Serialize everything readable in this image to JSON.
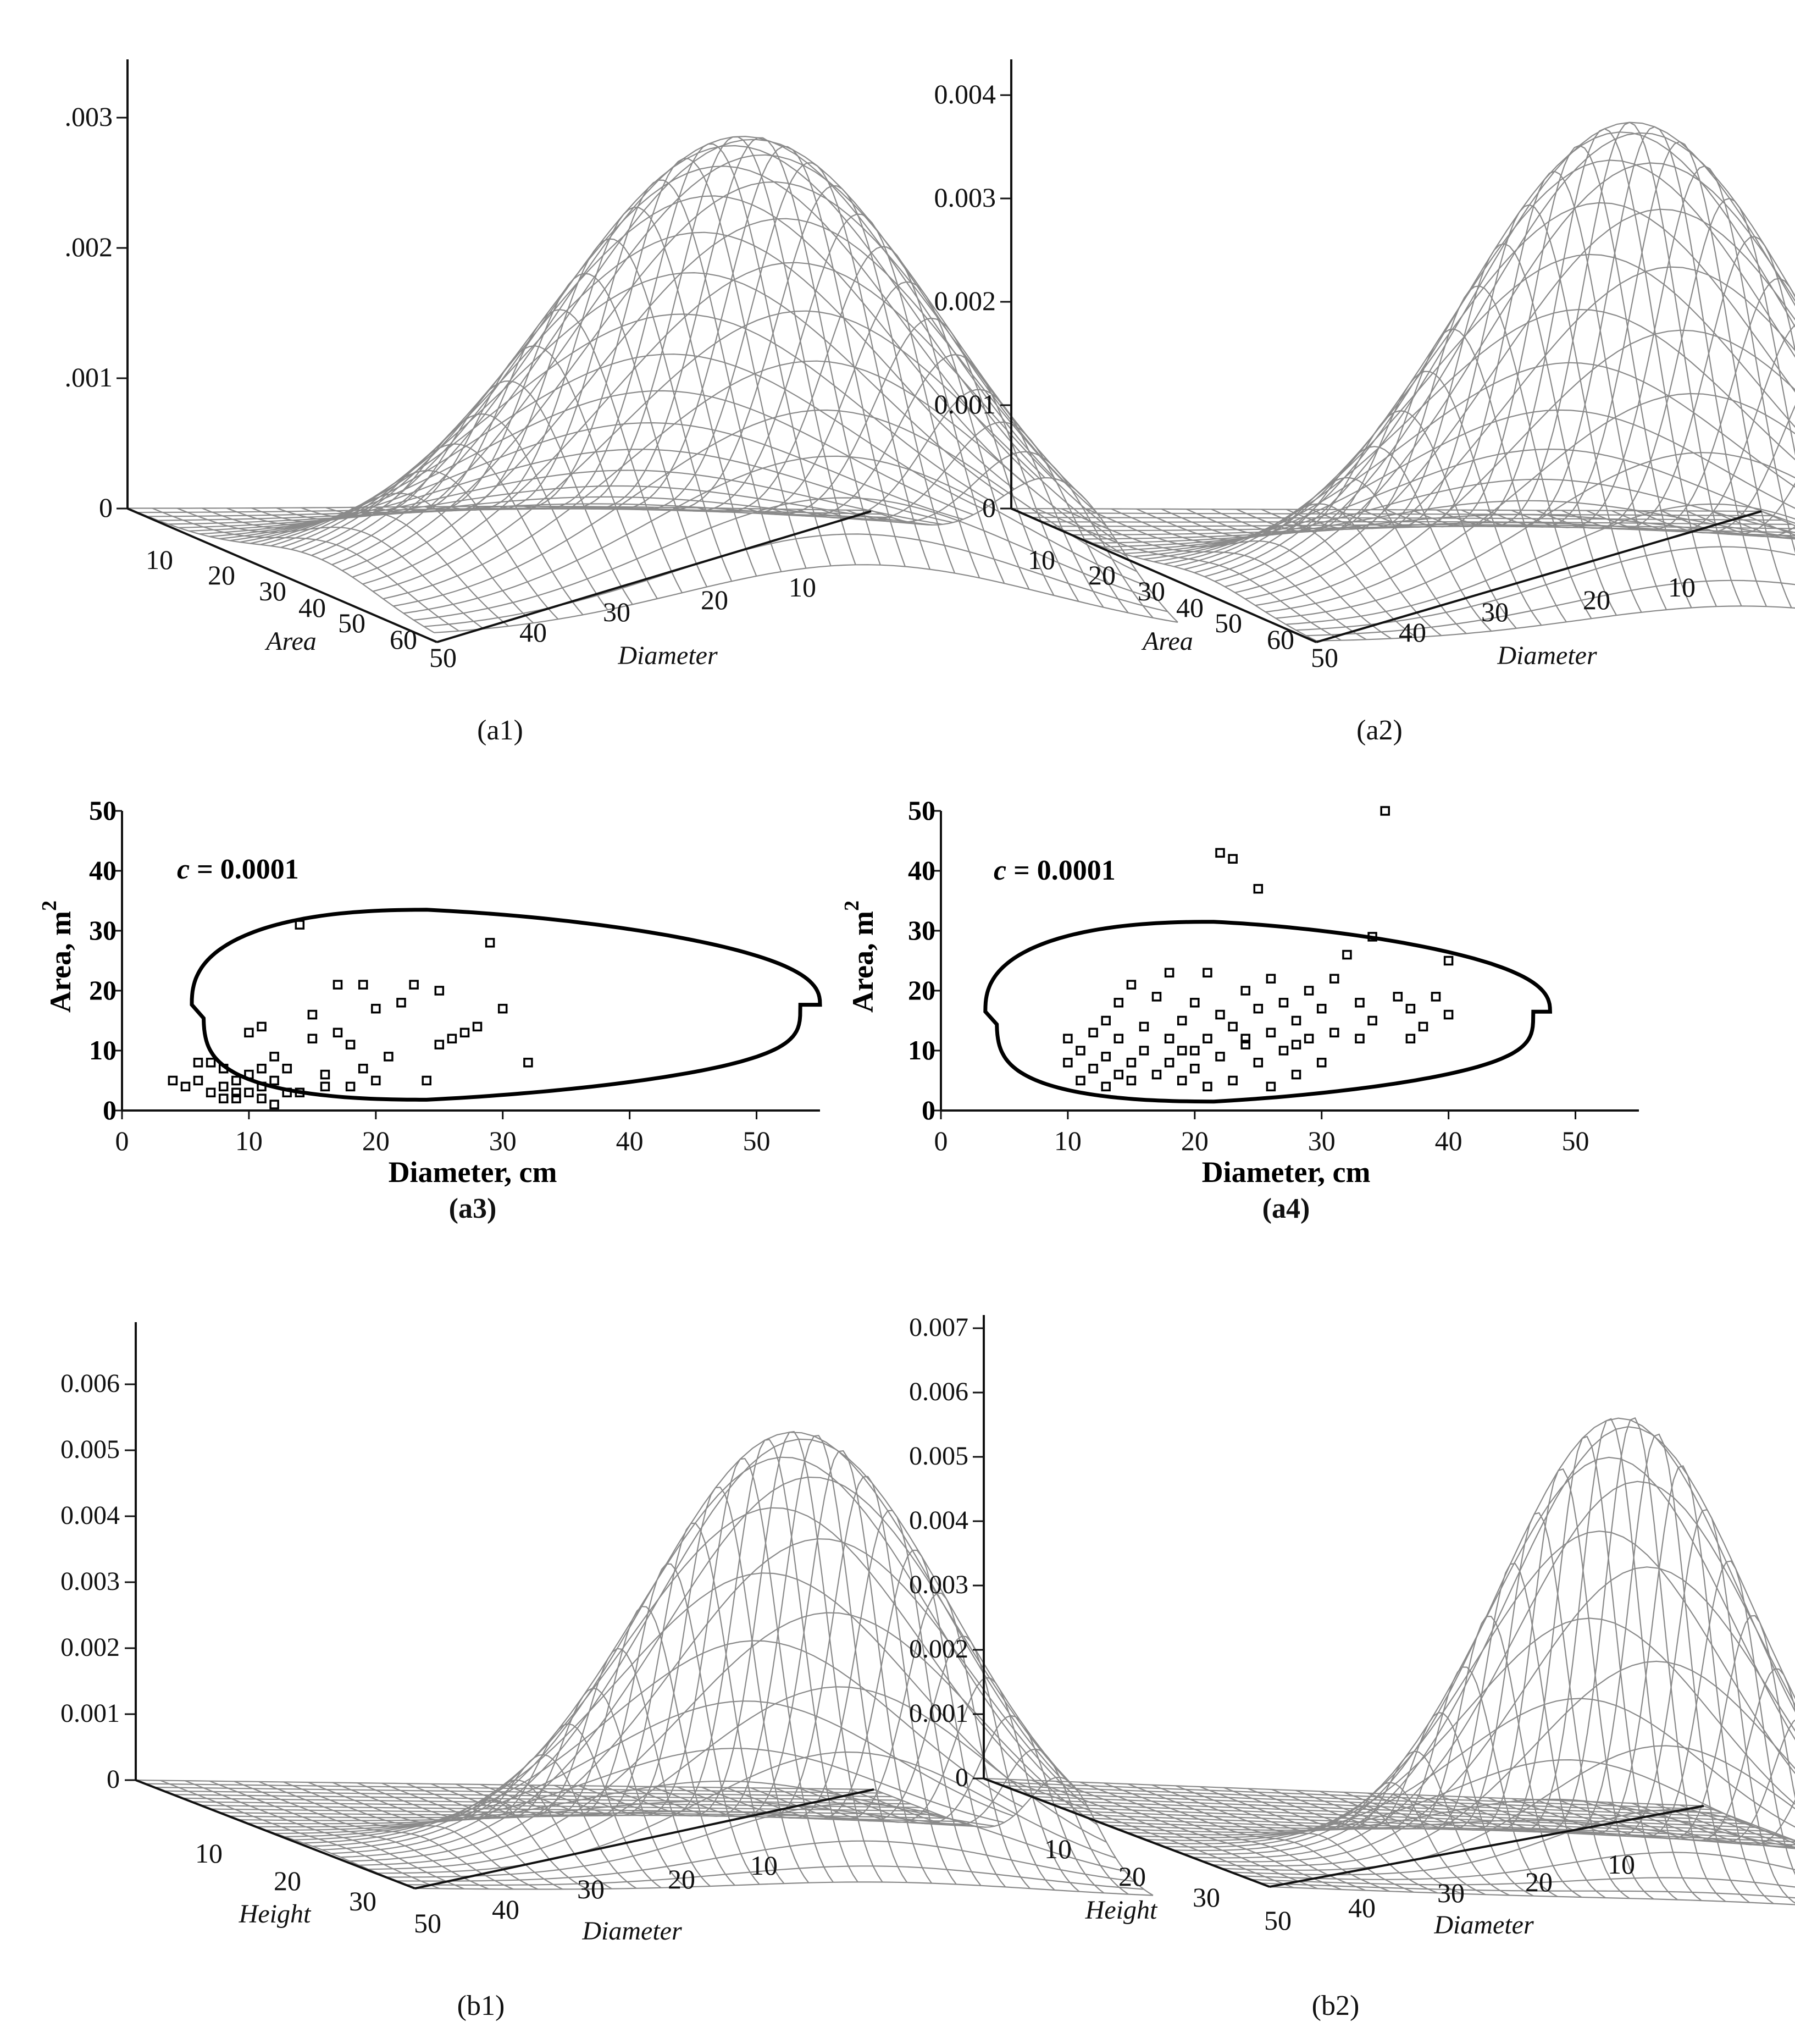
{
  "chart_data": [
    {
      "id": "a1",
      "type": "surface",
      "caption": "(a1)",
      "z_ticks": [
        "0",
        ".001",
        ".002",
        ".003"
      ],
      "area_ticks": [
        "10",
        "20",
        "30",
        "40",
        "50",
        "60"
      ],
      "area_label": "Area",
      "diameter_ticks": [
        "50",
        "40",
        "30",
        "20",
        "10"
      ],
      "diameter_label": "Diameter",
      "zmax": 0.0036
    },
    {
      "id": "a2",
      "type": "surface",
      "caption": "(a2)",
      "z_ticks": [
        "0",
        "0.001",
        "0.002",
        "0.003",
        "0.004"
      ],
      "area_ticks": [
        "10",
        "20",
        "30",
        "40",
        "50",
        "60"
      ],
      "area_label": "Area",
      "diameter_ticks": [
        "50",
        "40",
        "30",
        "20",
        "10"
      ],
      "diameter_label": "Diameter",
      "zmax": 0.0044
    },
    {
      "id": "a3",
      "type": "scatter",
      "caption": "(a3)",
      "xlabel": "Diameter, cm",
      "ylabel": "Area, m",
      "ylabel_sup": "2",
      "annotation_var": "c",
      "annotation_rest": " = 0.0001",
      "xlim": [
        0,
        55
      ],
      "ylim": [
        0,
        50
      ],
      "xticks": [
        "0",
        "10",
        "20",
        "30",
        "40",
        "50"
      ],
      "yticks": [
        "0",
        "10",
        "20",
        "30",
        "40",
        "50"
      ],
      "contour": {
        "dmin": 5.5,
        "dmax": 55,
        "apeak": 33.5,
        "dpeak": 24,
        "abottom": 1.8
      },
      "points": [
        [
          4,
          5
        ],
        [
          5,
          4
        ],
        [
          6,
          8
        ],
        [
          6,
          5
        ],
        [
          7,
          3
        ],
        [
          8,
          7
        ],
        [
          8,
          4
        ],
        [
          9,
          5
        ],
        [
          9,
          3
        ],
        [
          9,
          2
        ],
        [
          10,
          6
        ],
        [
          10,
          3
        ],
        [
          10,
          13
        ],
        [
          11,
          7
        ],
        [
          11,
          4
        ],
        [
          11,
          14
        ],
        [
          12,
          9
        ],
        [
          12,
          5
        ],
        [
          12,
          1
        ],
        [
          13,
          3
        ],
        [
          13,
          7
        ],
        [
          14,
          31
        ],
        [
          15,
          16
        ],
        [
          15,
          12
        ],
        [
          16,
          6
        ],
        [
          16,
          4
        ],
        [
          17,
          21
        ],
        [
          17,
          13
        ],
        [
          18,
          4
        ],
        [
          18,
          11
        ],
        [
          19,
          21
        ],
        [
          19,
          7
        ],
        [
          20,
          17
        ],
        [
          20,
          5
        ],
        [
          21,
          9
        ],
        [
          22,
          18
        ],
        [
          23,
          21
        ],
        [
          24,
          5
        ],
        [
          25,
          20
        ],
        [
          25,
          11
        ],
        [
          26,
          12
        ],
        [
          27,
          13
        ],
        [
          28,
          14
        ],
        [
          29,
          28
        ],
        [
          30,
          17
        ],
        [
          32,
          8
        ],
        [
          8,
          2
        ],
        [
          11,
          2
        ],
        [
          14,
          3
        ],
        [
          7,
          8
        ]
      ]
    },
    {
      "id": "a4",
      "type": "scatter",
      "caption": "(a4)",
      "xlabel": "Diameter, cm",
      "ylabel": "Area, m",
      "ylabel_sup": "2",
      "annotation_var": "c",
      "annotation_rest": " = 0.0001",
      "xlim": [
        0,
        55
      ],
      "ylim": [
        0,
        50
      ],
      "xticks": [
        "0",
        "10",
        "20",
        "30",
        "40",
        "50"
      ],
      "yticks": [
        "0",
        "10",
        "20",
        "30",
        "40",
        "50"
      ],
      "contour": {
        "dmin": 3.5,
        "dmax": 48,
        "apeak": 31.5,
        "dpeak": 21.5,
        "abottom": 1.5
      },
      "points": [
        [
          10,
          8
        ],
        [
          10,
          12
        ],
        [
          11,
          5
        ],
        [
          11,
          10
        ],
        [
          12,
          7
        ],
        [
          12,
          13
        ],
        [
          13,
          4
        ],
        [
          13,
          9
        ],
        [
          13,
          15
        ],
        [
          14,
          6
        ],
        [
          14,
          12
        ],
        [
          14,
          18
        ],
        [
          15,
          8
        ],
        [
          15,
          5
        ],
        [
          15,
          21
        ],
        [
          16,
          10
        ],
        [
          16,
          14
        ],
        [
          17,
          6
        ],
        [
          17,
          19
        ],
        [
          18,
          12
        ],
        [
          18,
          8
        ],
        [
          18,
          23
        ],
        [
          19,
          5
        ],
        [
          19,
          15
        ],
        [
          20,
          10
        ],
        [
          20,
          18
        ],
        [
          20,
          7
        ],
        [
          21,
          12
        ],
        [
          21,
          23
        ],
        [
          22,
          9
        ],
        [
          22,
          16
        ],
        [
          22,
          43
        ],
        [
          23,
          14
        ],
        [
          23,
          5
        ],
        [
          23,
          42
        ],
        [
          24,
          11
        ],
        [
          24,
          20
        ],
        [
          25,
          8
        ],
        [
          25,
          17
        ],
        [
          25,
          37
        ],
        [
          26,
          13
        ],
        [
          26,
          22
        ],
        [
          27,
          10
        ],
        [
          27,
          18
        ],
        [
          28,
          6
        ],
        [
          28,
          15
        ],
        [
          29,
          12
        ],
        [
          29,
          20
        ],
        [
          30,
          8
        ],
        [
          30,
          17
        ],
        [
          31,
          13
        ],
        [
          31,
          22
        ],
        [
          32,
          26
        ],
        [
          33,
          12
        ],
        [
          33,
          18
        ],
        [
          34,
          15
        ],
        [
          34,
          29
        ],
        [
          35,
          50
        ],
        [
          36,
          19
        ],
        [
          37,
          12
        ],
        [
          37,
          17
        ],
        [
          38,
          14
        ],
        [
          39,
          19
        ],
        [
          40,
          16
        ],
        [
          40,
          25
        ],
        [
          19,
          10
        ],
        [
          21,
          4
        ],
        [
          24,
          12
        ],
        [
          26,
          4
        ],
        [
          28,
          11
        ]
      ]
    },
    {
      "id": "b1",
      "type": "surface",
      "caption": "(b1)",
      "z_ticks": [
        "0",
        "0.001",
        "0.002",
        "0.003",
        "0.004",
        "0.005",
        "0.006"
      ],
      "height_ticks": [
        "10",
        "20",
        "30",
        "50"
      ],
      "height_label": "Height",
      "diameter_ticks": [
        "40",
        "30",
        "20",
        "10"
      ],
      "diameter_label": "Diameter",
      "zmax": 0.0065
    },
    {
      "id": "b2",
      "type": "surface",
      "caption": "(b2)",
      "z_ticks": [
        "0",
        "0.001",
        "0.002",
        "0.003",
        "0.004",
        "0.005",
        "0.006",
        "0.007"
      ],
      "height_ticks": [
        "10",
        "20",
        "30",
        "50"
      ],
      "height_label": "Height",
      "diameter_ticks": [
        "40",
        "30",
        "20",
        "10"
      ],
      "diameter_label": "Diameter",
      "zmax": 0.0071
    }
  ]
}
